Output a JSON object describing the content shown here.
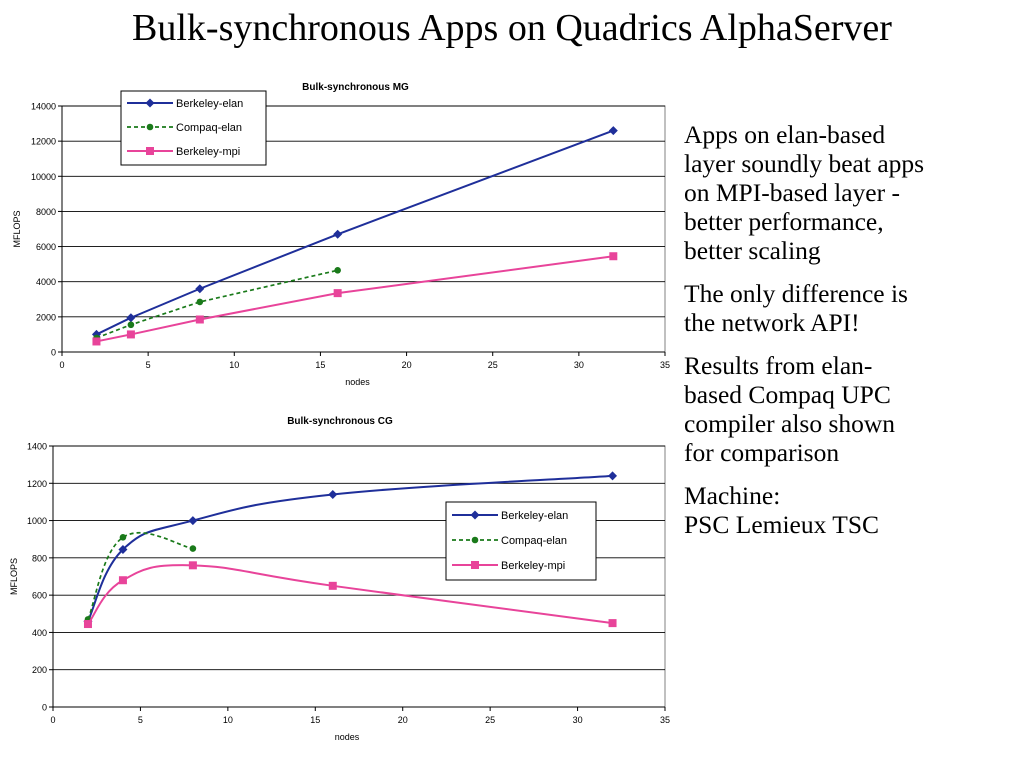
{
  "title": "Bulk-synchronous Apps on Quadrics AlphaServer",
  "colors": {
    "berkeley_elan": "#1f2f9a",
    "compaq_elan": "#1a7a1a",
    "berkeley_mpi": "#e8449a"
  },
  "chart_data": [
    {
      "type": "line",
      "title": "Bulk-synchronous MG",
      "xlabel": "nodes",
      "ylabel": "MFLOPS",
      "xlim": [
        0,
        35
      ],
      "ylim": [
        0,
        14000
      ],
      "xticks": [
        0,
        5,
        10,
        15,
        20,
        25,
        30,
        35
      ],
      "yticks": [
        0,
        2000,
        4000,
        6000,
        8000,
        10000,
        12000,
        14000
      ],
      "grid": "horizontal",
      "legend_position": "top-left",
      "series": [
        {
          "name": "Berkeley-elan",
          "color": "#1f2f9a",
          "marker": "diamond",
          "dash": "solid",
          "x": [
            2,
            4,
            8,
            16,
            32
          ],
          "y": [
            1000,
            1950,
            3600,
            6700,
            12600
          ]
        },
        {
          "name": "Compaq-elan",
          "color": "#1a7a1a",
          "marker": "circle",
          "dash": "dashed",
          "x": [
            2,
            4,
            8,
            16
          ],
          "y": [
            800,
            1550,
            2850,
            4650
          ]
        },
        {
          "name": "Berkeley-mpi",
          "color": "#e8449a",
          "marker": "square",
          "dash": "solid",
          "x": [
            2,
            4,
            8,
            16,
            32
          ],
          "y": [
            600,
            1000,
            1850,
            3350,
            5450
          ]
        }
      ]
    },
    {
      "type": "line",
      "title": "Bulk-synchronous CG",
      "xlabel": "nodes",
      "ylabel": "MFLOPS",
      "xlim": [
        0,
        35
      ],
      "ylim": [
        0,
        1400
      ],
      "xticks": [
        0,
        5,
        10,
        15,
        20,
        25,
        30,
        35
      ],
      "yticks": [
        0,
        200,
        400,
        600,
        800,
        1000,
        1200,
        1400
      ],
      "grid": "horizontal",
      "legend_position": "center-right",
      "smooth": true,
      "series": [
        {
          "name": "Berkeley-elan",
          "color": "#1f2f9a",
          "marker": "diamond",
          "dash": "solid",
          "x": [
            2,
            4,
            8,
            16,
            32
          ],
          "y": [
            460,
            845,
            1000,
            1140,
            1240
          ]
        },
        {
          "name": "Compaq-elan",
          "color": "#1a7a1a",
          "marker": "circle",
          "dash": "dashed",
          "x": [
            2,
            4,
            8
          ],
          "y": [
            470,
            910,
            850
          ]
        },
        {
          "name": "Berkeley-mpi",
          "color": "#e8449a",
          "marker": "square",
          "dash": "solid",
          "x": [
            2,
            4,
            8,
            16,
            32
          ],
          "y": [
            445,
            680,
            760,
            650,
            450
          ]
        }
      ]
    }
  ],
  "bullets": [
    {
      "lines": [
        "Apps on elan-based",
        "layer soundly beat apps",
        "on MPI-based layer -",
        "better performance,",
        "better scaling"
      ]
    },
    {
      "lines": [
        "The only difference is",
        "the network API!"
      ]
    },
    {
      "lines": [
        "Results from elan-",
        "based Compaq UPC",
        "compiler also shown",
        "for comparison"
      ]
    },
    {
      "lines": [
        "Machine:",
        "PSC Lemieux TSC"
      ]
    }
  ]
}
